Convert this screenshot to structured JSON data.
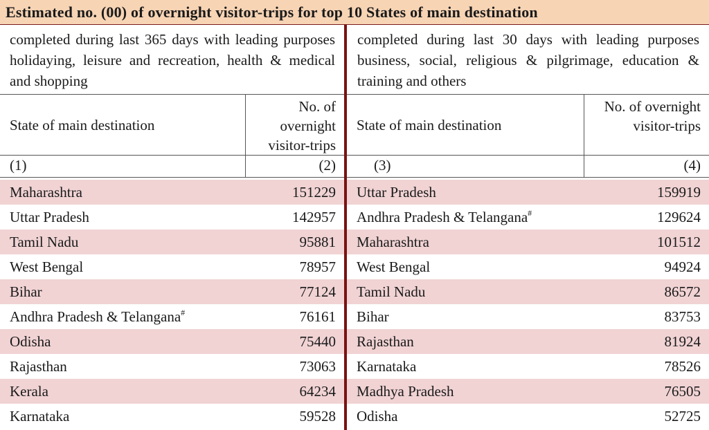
{
  "title": "Estimated no. (00) of overnight visitor-trips for top 10 States of main destination",
  "left_subtitle": "completed during last 365 days with leading purposes holidaying, leisure and recreation, health & medical and shopping",
  "right_subtitle": "completed during last 30 days with leading purposes business, social, religious & pilgrimage, education & training and others",
  "headers": {
    "state": "State of main destination",
    "trips": "No. of overnight visitor-trips",
    "col1": "(1)",
    "col2": "(2)",
    "col3": "(3)",
    "col4": "(4)"
  },
  "footnote_marker": "#",
  "left_rows": [
    {
      "state": "Maharashtra",
      "sup": "",
      "value": "151229"
    },
    {
      "state": "Uttar Pradesh",
      "sup": "",
      "value": "142957"
    },
    {
      "state": "Tamil Nadu",
      "sup": "",
      "value": "95881"
    },
    {
      "state": "West Bengal",
      "sup": "",
      "value": "78957"
    },
    {
      "state": "Bihar",
      "sup": "",
      "value": "77124"
    },
    {
      "state": "Andhra Pradesh & Telangana",
      "sup": "#",
      "value": "76161"
    },
    {
      "state": "Odisha",
      "sup": "",
      "value": "75440"
    },
    {
      "state": "Rajasthan",
      "sup": "",
      "value": "73063"
    },
    {
      "state": "Kerala",
      "sup": "",
      "value": "64234"
    },
    {
      "state": "Karnataka",
      "sup": "",
      "value": "59528"
    }
  ],
  "right_rows": [
    {
      "state": "Uttar Pradesh",
      "sup": "",
      "value": "159919"
    },
    {
      "state": "Andhra Pradesh & Telangana",
      "sup": "#",
      "value": "129624"
    },
    {
      "state": "Maharashtra",
      "sup": "",
      "value": "101512"
    },
    {
      "state": "West Bengal",
      "sup": "",
      "value": "94924"
    },
    {
      "state": "Tamil Nadu",
      "sup": "",
      "value": "86572"
    },
    {
      "state": "Bihar",
      "sup": "",
      "value": "83753"
    },
    {
      "state": "Rajasthan",
      "sup": "",
      "value": "81924"
    },
    {
      "state": "Karnataka",
      "sup": "",
      "value": "78526"
    },
    {
      "state": "Madhya Pradesh",
      "sup": "",
      "value": "76505"
    },
    {
      "state": "Odisha",
      "sup": "",
      "value": "52725"
    }
  ],
  "colors": {
    "title_bg": "#f7d4b4",
    "row_shade": "#f1d3d4",
    "divider": "#7a1212"
  }
}
